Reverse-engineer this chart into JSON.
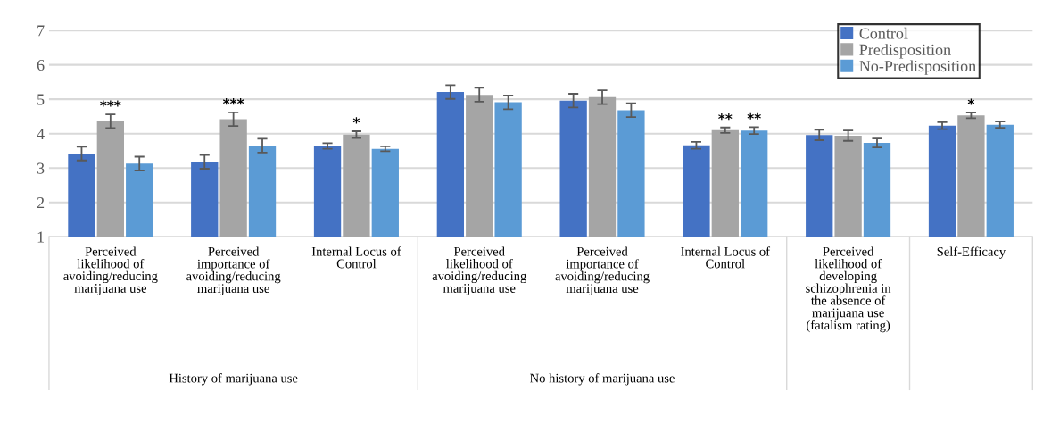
{
  "chart_data": {
    "type": "bar",
    "categories": [
      "Perceived\nlikelihood of\navoiding/reducing\nmarijuana use",
      "Perceived\nimportance of\navoiding/reducing\nmarijuana use",
      "Internal Locus of\nControl",
      "Perceived\nlikelihood of\navoiding/reducing\nmarijuana use",
      "Perceived\nimportance of\navoiding/reducing\nmarijuana use",
      "Internal Locus of\nControl",
      "Perceived\nlikelihood of\ndeveloping\nschizophrenia in\nthe absence of\nmarijuana use\n(fatalism rating)",
      "Self-Efficacy"
    ],
    "series": [
      {
        "name": "Control",
        "color": "#4472c4",
        "values": [
          3.42,
          3.18,
          3.64,
          5.21,
          4.96,
          3.66,
          3.96,
          4.23
        ],
        "errors": [
          0.2,
          0.2,
          0.08,
          0.2,
          0.2,
          0.1,
          0.15,
          0.1
        ]
      },
      {
        "name": "Predisposition",
        "color": "#a5a5a5",
        "values": [
          4.36,
          4.42,
          3.97,
          5.13,
          5.06,
          4.1,
          3.94,
          4.53
        ],
        "errors": [
          0.2,
          0.2,
          0.1,
          0.2,
          0.2,
          0.08,
          0.15,
          0.08
        ],
        "value_labels": [
          "***",
          "***",
          "*",
          null,
          null,
          "**",
          null,
          "*"
        ]
      },
      {
        "name": "No-Predisposition",
        "color": "#5b9bd5",
        "values": [
          3.13,
          3.65,
          3.56,
          4.91,
          4.68,
          4.09,
          3.73,
          4.26
        ],
        "errors": [
          0.2,
          0.2,
          0.07,
          0.2,
          0.2,
          0.1,
          0.13,
          0.09
        ],
        "value_labels": [
          null,
          null,
          null,
          null,
          null,
          "**",
          null,
          null
        ]
      }
    ],
    "ylim": [
      1,
      7
    ],
    "yticks": [
      1,
      2,
      3,
      4,
      5,
      6,
      7
    ],
    "grid": "y",
    "legend": "top right",
    "annotations": [
      "History of marijuana use",
      "No history of marijuana use"
    ]
  }
}
